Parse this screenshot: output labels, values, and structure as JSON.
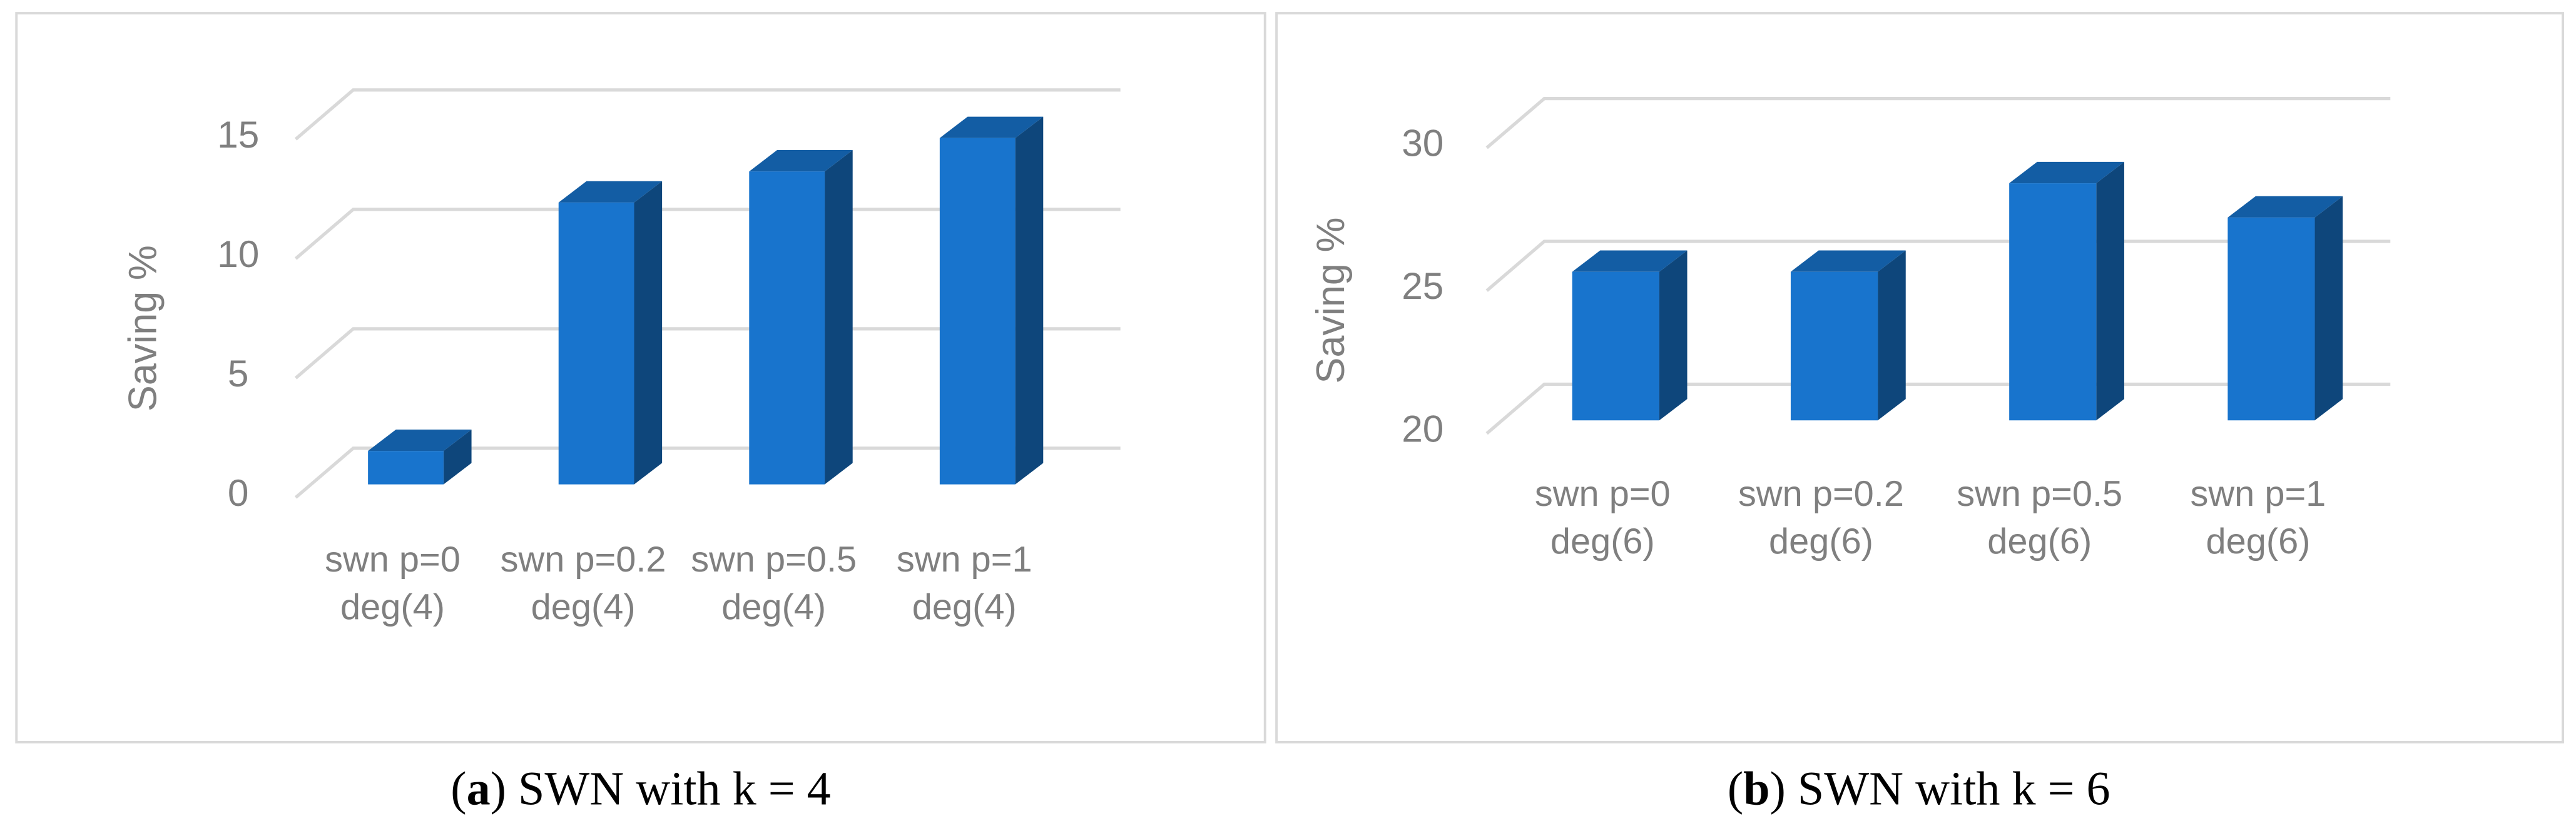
{
  "chart_data": [
    {
      "type": "bar3d",
      "y_label": "Saving %",
      "categories": [
        "swn p=0 deg(4)",
        "swn p=0.2 deg(4)",
        "swn p=0.5 deg(4)",
        "swn p=1 deg(4)"
      ],
      "series": [
        {
          "color": "#1874cd",
          "values": [
            1.4,
            11.8,
            13.1,
            14.5
          ]
        }
      ],
      "ylim": [
        0,
        15
      ],
      "yticks": [
        0,
        5,
        10,
        15
      ],
      "grid": true,
      "caption": [
        "(",
        "a",
        ") SWN with k = 4"
      ]
    },
    {
      "type": "bar3d",
      "y_label": "Saving %",
      "categories": [
        "swn p=0 deg(6)",
        "swn p=0.2 deg(6)",
        "swn p=0.5 deg(6)",
        "swn p=1 deg(6)"
      ],
      "series": [
        {
          "color": "#1874cd",
          "values": [
            25.2,
            25.2,
            28.3,
            27.1
          ]
        }
      ],
      "ylim": [
        20,
        30
      ],
      "yticks": [
        20,
        25,
        30
      ],
      "grid": true,
      "caption": [
        "(",
        "b",
        ") SWN with k = 6"
      ]
    }
  ]
}
